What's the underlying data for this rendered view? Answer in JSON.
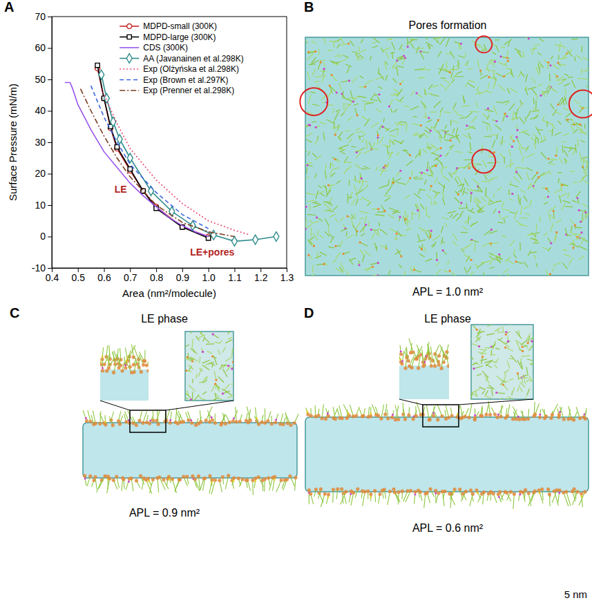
{
  "chart_data": {
    "type": "line",
    "xlabel": "Area (nm²/molecule)",
    "ylabel": "Surface Pressure (mN/m)",
    "xlim": [
      0.4,
      1.3
    ],
    "xticks": [
      0.4,
      0.5,
      0.6,
      0.7,
      0.8,
      0.9,
      {
        "value": 1,
        "label": "1.0"
      },
      1.1,
      1.2,
      1.3
    ],
    "ylim": [
      -10,
      70
    ],
    "yticks": [
      -10,
      0,
      10,
      20,
      30,
      40,
      50,
      60,
      70
    ],
    "legend": "upper right",
    "series": [
      {
        "name": "MDPD-small (300K)",
        "color": "#c62828",
        "marker": "circle",
        "line_style": "solid",
        "x": [
          0.575,
          0.6,
          0.625,
          0.65,
          0.7,
          0.75,
          0.8,
          0.9,
          1.0
        ],
        "values": [
          53.5,
          44,
          34.5,
          28,
          21,
          14.5,
          9.5,
          3,
          0
        ]
      },
      {
        "name": "MDPD-large (300K)",
        "color": "#000000",
        "marker": "square",
        "line_style": "solid",
        "x": [
          0.575,
          0.6,
          0.625,
          0.65,
          0.7,
          0.75,
          0.8,
          0.9,
          1.0
        ],
        "values": [
          54.5,
          44,
          35,
          28.5,
          21.5,
          14.5,
          9,
          3,
          -0.5
        ]
      },
      {
        "name": "CDS (300K)",
        "color": "#9955ee",
        "marker": "none",
        "line_style": "solid",
        "x": [
          0.45,
          0.47,
          0.48,
          0.5,
          0.55,
          0.6,
          0.65,
          0.7,
          0.75,
          0.8,
          0.85,
          0.9,
          0.95,
          1.0
        ],
        "values": [
          49,
          49,
          47,
          42,
          34,
          27,
          22,
          17,
          13,
          9.5,
          6,
          3.5,
          1.5,
          0
        ]
      },
      {
        "name": "AA (Javanainen et al.298K)",
        "color": "#2e8b8b",
        "marker": "diamond",
        "line_style": "solid",
        "x": [
          0.59,
          0.61,
          0.635,
          0.66,
          0.7,
          0.78,
          0.86,
          0.94,
          1.02,
          1.1,
          1.18,
          1.26
        ],
        "values": [
          51.5,
          44,
          36.5,
          31,
          25,
          14.5,
          8,
          3.5,
          0.5,
          -1.5,
          -1,
          0
        ]
      },
      {
        "name": "Exp (Olżyńska et al.298K)",
        "color": "#e8436a",
        "marker": "none",
        "line_style": "dotted",
        "x": [
          0.59,
          0.65,
          0.7,
          0.8,
          0.9,
          1.0,
          1.1,
          1.16
        ],
        "values": [
          47,
          36,
          28,
          18,
          10.5,
          5,
          2,
          0.5
        ]
      },
      {
        "name": "Exp (Brown et al.297K)",
        "color": "#3a66e0",
        "marker": "none",
        "line_style": "dashed",
        "x": [
          0.55,
          0.6,
          0.65,
          0.7,
          0.8,
          0.9,
          1.0
        ],
        "values": [
          48,
          38,
          30,
          23,
          14,
          7,
          2.5
        ]
      },
      {
        "name": "Exp (Prenner et al.298K)",
        "color": "#7a3b1e",
        "marker": "none",
        "line_style": "dashdot",
        "x": [
          0.51,
          0.55,
          0.6,
          0.65,
          0.7,
          0.8,
          0.9,
          1.0,
          1.1
        ],
        "values": [
          47,
          40,
          32,
          25,
          19,
          10,
          4.5,
          1.5,
          0
        ]
      }
    ],
    "annotations": [
      {
        "text": "LE",
        "x": 0.64,
        "y": 14
      },
      {
        "text": "LE+pores",
        "x": 0.93,
        "y": -6
      }
    ]
  },
  "chart_panel_label": "A",
  "images": [
    {
      "label": "B",
      "title": "Pores formation",
      "caption": "APL = 1.0 nm²"
    },
    {
      "label": "C",
      "title": "LE phase",
      "caption": "APL = 0.9 nm²"
    },
    {
      "label": "D",
      "title": "LE phase",
      "caption": "APL = 0.6 nm²"
    }
  ],
  "scale_bar": "5 nm"
}
